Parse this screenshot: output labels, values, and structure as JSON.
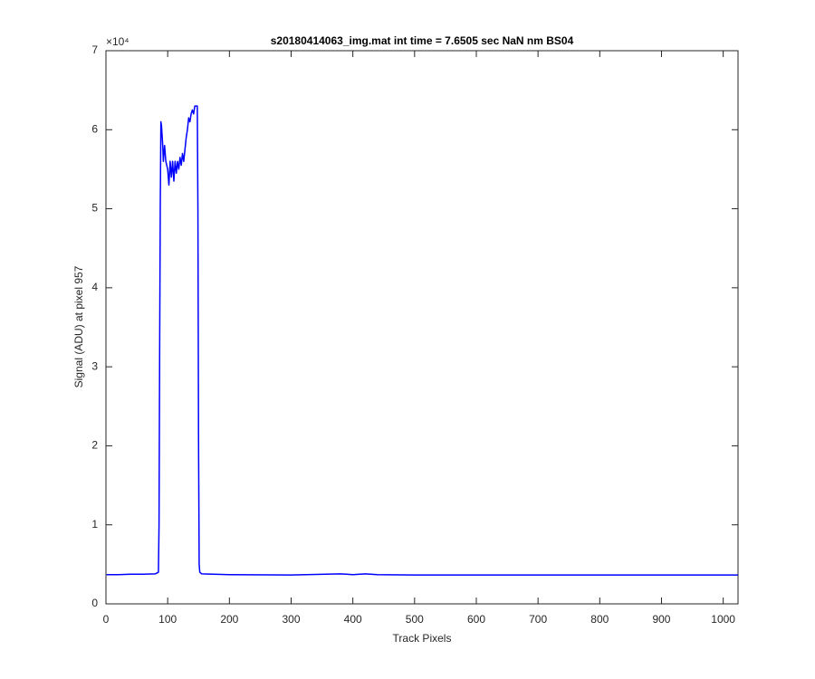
{
  "chart_data": {
    "type": "line",
    "title": "s20180414063_img.mat int time = 7.6505 sec  NaN nm BS04",
    "x_label": "Track Pixels",
    "y_label": "Signal (ADU) at pixel 957",
    "y_exponent_label": "×10⁴",
    "xlim": [
      0,
      1024
    ],
    "ylim": [
      0,
      7
    ],
    "xticks": [
      0,
      100,
      200,
      300,
      400,
      500,
      600,
      700,
      800,
      900,
      1000
    ],
    "yticks": [
      0,
      1,
      2,
      3,
      4,
      5,
      6,
      7
    ],
    "grid": false,
    "color": "#0000ff",
    "x": [
      1,
      20,
      40,
      60,
      80,
      85,
      86,
      87,
      88,
      89,
      90,
      92,
      93,
      95,
      97,
      100,
      102,
      104,
      106,
      108,
      110,
      112,
      114,
      116,
      118,
      120,
      122,
      124,
      126,
      128,
      130,
      132,
      134,
      136,
      138,
      140,
      142,
      144,
      146,
      148,
      149,
      150,
      151,
      152,
      155,
      200,
      300,
      380,
      400,
      420,
      440,
      500,
      600,
      700,
      800,
      900,
      1000,
      1024
    ],
    "values": [
      0.37,
      0.37,
      0.375,
      0.375,
      0.38,
      0.4,
      1.0,
      3.2,
      5.0,
      6.1,
      6.05,
      5.8,
      5.6,
      5.8,
      5.6,
      5.5,
      5.3,
      5.6,
      5.4,
      5.6,
      5.35,
      5.6,
      5.45,
      5.6,
      5.5,
      5.65,
      5.55,
      5.7,
      5.6,
      5.75,
      5.9,
      6.0,
      6.15,
      6.1,
      6.2,
      6.25,
      6.2,
      6.3,
      6.3,
      6.3,
      5.0,
      2.1,
      0.5,
      0.4,
      0.38,
      0.37,
      0.365,
      0.38,
      0.37,
      0.38,
      0.37,
      0.365,
      0.365,
      0.365,
      0.365,
      0.365,
      0.365,
      0.365
    ]
  }
}
